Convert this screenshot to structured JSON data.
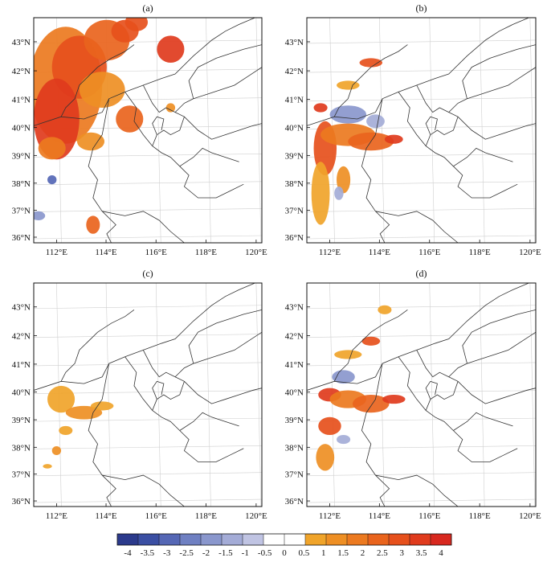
{
  "panels": [
    {
      "label": "(a)"
    },
    {
      "label": "(b)"
    },
    {
      "label": "(c)"
    },
    {
      "label": "(d)"
    }
  ],
  "lat_labels": [
    "36°N",
    "37°N",
    "38°N",
    "39°N",
    "40°N",
    "41°N",
    "42°N",
    "43°N"
  ],
  "lon_labels": [
    "112°E",
    "114°E",
    "116°E",
    "118°E",
    "120°E"
  ],
  "colorbar": {
    "labels": [
      "-4",
      "-3.5",
      "-3",
      "-2.5",
      "-2",
      "-1.5",
      "-1",
      "-0.5",
      "0",
      "0.5",
      "1",
      "1.5",
      "2",
      "2.5",
      "3",
      "3.5",
      "4"
    ],
    "colors": [
      "#2b3a8c",
      "#3b4fa3",
      "#5567b5",
      "#6f80c2",
      "#8a97cd",
      "#a4acd7",
      "#c0c4e3",
      "#ffffff",
      "#ffffff",
      "#f0a42a",
      "#ee8f24",
      "#ec7a20",
      "#e9641d",
      "#e6501c",
      "#e03b1d",
      "#d8281f"
    ]
  }
}
